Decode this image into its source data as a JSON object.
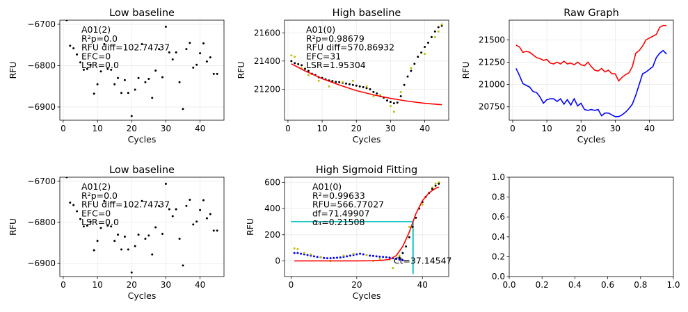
{
  "chart_data": [
    {
      "id": "p1",
      "type": "scatter",
      "title": "Low baseline",
      "xlabel": "Cycles",
      "ylabel": "RFU",
      "xlim": [
        -1,
        47
      ],
      "ylim": [
        -6932,
        -6690
      ],
      "xticks": [
        0,
        10,
        20,
        30,
        40
      ],
      "yticks": [
        -6700,
        -6800,
        -6900
      ],
      "ytick_labels": [
        "−6700",
        "−6800",
        "−6900"
      ],
      "grid": true,
      "annotation": [
        "A01(2)",
        "R²p=0.0",
        "RFU diff=102.74737",
        "EFC=0",
        "LSR=0.0"
      ],
      "series": [
        {
          "color": "#000000",
          "x": [
            1,
            2,
            3,
            4,
            5,
            6,
            7,
            8,
            9,
            10,
            11,
            12,
            13,
            14,
            15,
            16,
            17,
            18,
            19,
            20,
            21,
            22,
            23,
            24,
            25,
            26,
            27,
            28,
            29,
            30,
            31,
            32,
            33,
            34,
            35,
            36,
            37,
            38,
            39,
            40,
            41,
            42,
            43,
            44,
            45
          ],
          "y": [
            -6690,
            -6752,
            -6758,
            -6773,
            -6792,
            -6810,
            -6808,
            -6798,
            -6868,
            -6845,
            -6814,
            -6748,
            -6808,
            -6810,
            -6845,
            -6830,
            -6866,
            -6835,
            -6866,
            -6922,
            -6858,
            -6830,
            -6748,
            -6840,
            -6832,
            -6878,
            -6812,
            -6760,
            -6828,
            -6706,
            -6768,
            -6785,
            -6768,
            -6840,
            -6905,
            -6760,
            -6745,
            -6805,
            -6798,
            -6770,
            -6746,
            -6790,
            -6780,
            -6820,
            -6820
          ]
        }
      ]
    },
    {
      "id": "p2",
      "type": "scatter",
      "title": "High baseline",
      "xlabel": "Cycles",
      "ylabel": "RFU",
      "xlim": [
        -1,
        47
      ],
      "ylim": [
        20980,
        21690
      ],
      "xticks": [
        0,
        10,
        20,
        30,
        40
      ],
      "yticks": [
        21200,
        21400,
        21600
      ],
      "ytick_labels": [
        "21200",
        "21400",
        "21600"
      ],
      "grid": true,
      "annotation": [
        "A01(0)",
        "R²p=0.98679",
        "RFU diff=570.86932",
        "EFC=31",
        "LSR=1.95304"
      ],
      "series": [
        {
          "color": "#000000",
          "type": "scatter",
          "x": [
            1,
            2,
            3,
            4,
            5,
            6,
            7,
            8,
            9,
            10,
            11,
            12,
            13,
            14,
            15,
            16,
            17,
            18,
            19,
            20,
            21,
            22,
            23,
            24,
            25,
            26,
            27,
            28,
            29,
            30,
            31,
            32,
            33,
            34,
            35,
            36,
            37,
            38,
            39,
            40,
            41,
            42,
            43,
            44,
            45
          ],
          "y": [
            21400,
            21385,
            21378,
            21370,
            21345,
            21330,
            21310,
            21300,
            21285,
            21280,
            21270,
            21262,
            21258,
            21252,
            21250,
            21245,
            21240,
            21235,
            21230,
            21225,
            21220,
            21215,
            21208,
            21200,
            21180,
            21170,
            21150,
            21140,
            21120,
            21110,
            21100,
            21105,
            21150,
            21230,
            21290,
            21330,
            21380,
            21430,
            21460,
            21500,
            21530,
            21570,
            21610,
            21640,
            21650
          ]
        },
        {
          "color": "#bfbf00",
          "type": "scatter",
          "x": [
            1,
            2,
            4,
            6,
            9,
            12,
            16,
            19,
            23,
            25,
            27,
            30,
            31,
            33,
            36,
            40,
            43,
            44,
            45
          ],
          "y": [
            21440,
            21430,
            21350,
            21300,
            21260,
            21220,
            21250,
            21260,
            21220,
            21150,
            21160,
            21080,
            21040,
            21180,
            21350,
            21450,
            21570,
            21610,
            21660
          ]
        },
        {
          "color": "#ff0000",
          "type": "line",
          "x": [
            1,
            5,
            10,
            15,
            20,
            25,
            30,
            35,
            40,
            45
          ],
          "y": [
            21380,
            21330,
            21275,
            21230,
            21190,
            21160,
            21135,
            21115,
            21100,
            21090
          ]
        }
      ]
    },
    {
      "id": "p3",
      "type": "line",
      "title": "Raw Graph",
      "xlabel": "Cycles",
      "ylabel": "RFU",
      "xlim": [
        -1,
        47
      ],
      "ylim": [
        20600,
        21720
      ],
      "xticks": [
        0,
        10,
        20,
        30,
        40
      ],
      "yticks": [
        20750,
        21000,
        21250,
        21500
      ],
      "ytick_labels": [
        "20750",
        "21000",
        "21250",
        "21500"
      ],
      "grid": true,
      "series": [
        {
          "color": "#ff0000",
          "x": [
            1,
            2,
            3,
            4,
            5,
            6,
            7,
            8,
            9,
            10,
            11,
            12,
            13,
            14,
            15,
            16,
            17,
            18,
            19,
            20,
            21,
            22,
            23,
            24,
            25,
            26,
            27,
            28,
            29,
            30,
            31,
            32,
            33,
            34,
            35,
            36,
            37,
            38,
            39,
            40,
            41,
            42,
            43,
            44,
            45
          ],
          "y": [
            21440,
            21420,
            21360,
            21370,
            21360,
            21330,
            21300,
            21290,
            21270,
            21280,
            21240,
            21230,
            21250,
            21230,
            21260,
            21230,
            21240,
            21220,
            21250,
            21220,
            21210,
            21250,
            21200,
            21160,
            21150,
            21180,
            21140,
            21160,
            21120,
            21120,
            21040,
            21080,
            21110,
            21130,
            21200,
            21350,
            21380,
            21430,
            21500,
            21520,
            21540,
            21560,
            21640,
            21660,
            21660
          ]
        },
        {
          "color": "#0000ff",
          "x": [
            1,
            2,
            3,
            4,
            5,
            6,
            7,
            8,
            9,
            10,
            11,
            12,
            13,
            14,
            15,
            16,
            17,
            18,
            19,
            20,
            21,
            22,
            23,
            24,
            25,
            26,
            27,
            28,
            29,
            30,
            31,
            32,
            33,
            34,
            35,
            36,
            37,
            38,
            39,
            40,
            41,
            42,
            43,
            44,
            45
          ],
          "y": [
            21180,
            21100,
            21010,
            20990,
            20970,
            20920,
            20910,
            20860,
            20790,
            20830,
            20840,
            20840,
            20810,
            20840,
            20780,
            20830,
            20770,
            20840,
            20760,
            20790,
            20720,
            20710,
            20720,
            20710,
            20720,
            20650,
            20680,
            20680,
            20660,
            20640,
            20640,
            20660,
            20690,
            20730,
            20780,
            20880,
            21000,
            21120,
            21140,
            21170,
            21200,
            21300,
            21350,
            21380,
            21340
          ]
        }
      ]
    },
    {
      "id": "p4",
      "type": "scatter",
      "title": "Low baseline",
      "xlabel": "Cycles",
      "ylabel": "RFU",
      "xlim": [
        -1,
        47
      ],
      "ylim": [
        -6932,
        -6690
      ],
      "xticks": [
        0,
        10,
        20,
        30,
        40
      ],
      "yticks": [
        -6700,
        -6800,
        -6900
      ],
      "ytick_labels": [
        "−6700",
        "−6800",
        "−6900"
      ],
      "grid": true,
      "annotation": [
        "A01(2)",
        "R²p=0.0",
        "RFU diff=102.74737",
        "EFC=0",
        "LSR=0.0"
      ],
      "series": [
        {
          "color": "#000000",
          "x": [
            1,
            2,
            3,
            4,
            5,
            6,
            7,
            8,
            9,
            10,
            11,
            12,
            13,
            14,
            15,
            16,
            17,
            18,
            19,
            20,
            21,
            22,
            23,
            24,
            25,
            26,
            27,
            28,
            29,
            30,
            31,
            32,
            33,
            34,
            35,
            36,
            37,
            38,
            39,
            40,
            41,
            42,
            43,
            44,
            45
          ],
          "y": [
            -6690,
            -6752,
            -6758,
            -6773,
            -6792,
            -6810,
            -6808,
            -6798,
            -6868,
            -6845,
            -6814,
            -6748,
            -6808,
            -6810,
            -6845,
            -6830,
            -6866,
            -6835,
            -6866,
            -6922,
            -6858,
            -6830,
            -6748,
            -6840,
            -6832,
            -6878,
            -6812,
            -6760,
            -6828,
            -6706,
            -6768,
            -6785,
            -6768,
            -6840,
            -6905,
            -6760,
            -6745,
            -6805,
            -6798,
            -6770,
            -6746,
            -6790,
            -6780,
            -6820,
            -6820
          ]
        }
      ]
    },
    {
      "id": "p5",
      "type": "scatter",
      "title": "High Sigmoid Fitting",
      "xlabel": "Cycles",
      "ylabel": "RFU",
      "xlim": [
        -2,
        48
      ],
      "ylim": [
        -120,
        640
      ],
      "xticks": [
        0,
        20,
        40
      ],
      "yticks": [
        0,
        200,
        400,
        600
      ],
      "ytick_labels": [
        "0",
        "200",
        "400",
        "600"
      ],
      "grid": true,
      "annotation": [
        "A01(0)",
        "R²=0.99633",
        "RFU=566.77027",
        "df=71.49907",
        "α₄=0.21508"
      ],
      "ct_label": "Ct=37.14547",
      "ct": 37.14547,
      "threshold": 300,
      "series": [
        {
          "color": "#0000ff",
          "type": "scatter",
          "x": [
            1,
            2,
            3,
            4,
            5,
            6,
            7,
            8,
            9,
            10,
            11,
            12,
            13,
            14,
            15,
            16,
            17,
            18,
            19,
            20,
            21,
            22,
            23,
            24,
            25,
            26,
            27,
            28,
            29,
            30,
            31,
            32,
            33,
            34
          ],
          "y": [
            60,
            60,
            55,
            50,
            45,
            40,
            35,
            30,
            28,
            22,
            20,
            20,
            22,
            24,
            26,
            30,
            35,
            40,
            45,
            50,
            55,
            50,
            45,
            40,
            38,
            35,
            32,
            30,
            28,
            25,
            20,
            15,
            10,
            5
          ]
        },
        {
          "color": "#bfbf00",
          "type": "scatter",
          "x": [
            1,
            2,
            4,
            6,
            9,
            12,
            16,
            19,
            23,
            25,
            27,
            30,
            31,
            33,
            36,
            40,
            43,
            44,
            45
          ],
          "y": [
            95,
            90,
            60,
            50,
            30,
            0,
            40,
            55,
            45,
            0,
            15,
            10,
            -55,
            40,
            260,
            430,
            560,
            590,
            600
          ]
        },
        {
          "color": "#000000",
          "type": "scatter",
          "x": [
            33,
            34,
            35,
            36,
            37,
            38,
            39,
            40,
            41,
            42,
            43,
            44,
            45
          ],
          "y": [
            25,
            60,
            110,
            180,
            260,
            330,
            400,
            450,
            490,
            520,
            550,
            575,
            590
          ]
        },
        {
          "color": "#ff0000",
          "type": "line",
          "x": [
            1,
            5,
            10,
            15,
            20,
            25,
            28,
            30,
            32,
            34,
            36,
            37,
            38,
            40,
            42,
            44,
            45
          ],
          "y": [
            0,
            0,
            0,
            0,
            0,
            1,
            5,
            12,
            40,
            110,
            220,
            290,
            360,
            460,
            520,
            555,
            565
          ]
        }
      ]
    },
    {
      "id": "p6",
      "type": "scatter",
      "title": "",
      "xlabel": "",
      "ylabel": "",
      "xlim": [
        0,
        1
      ],
      "ylim": [
        0,
        1
      ],
      "xticks": [
        0,
        0.2,
        0.4,
        0.6,
        0.8,
        1.0
      ],
      "yticks": [
        0,
        0.2,
        0.4,
        0.6,
        0.8,
        1.0
      ],
      "xtick_labels": [
        "0.0",
        "0.2",
        "0.4",
        "0.6",
        "0.8",
        "1.0"
      ],
      "ytick_labels": [
        "0.0",
        "0.2",
        "0.4",
        "0.6",
        "0.8",
        "1.0"
      ],
      "grid": false,
      "series": []
    }
  ]
}
